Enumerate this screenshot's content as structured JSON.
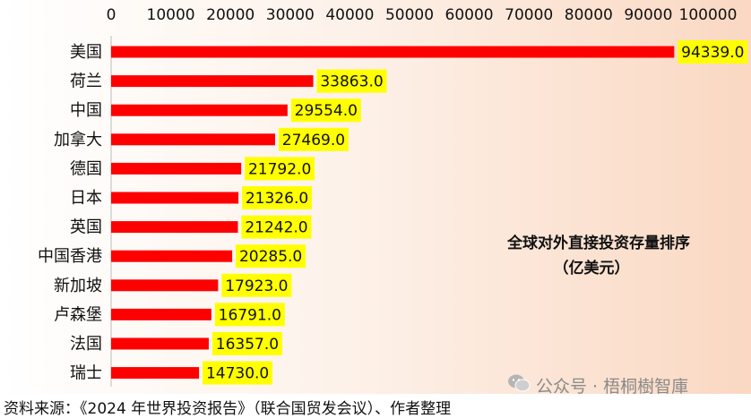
{
  "chart_data": {
    "type": "bar",
    "orientation": "horizontal",
    "title": "全球对外直接投资存量排序",
    "subtitle": "（亿美元）",
    "categories": [
      "美国",
      "荷兰",
      "中国",
      "加拿大",
      "德国",
      "日本",
      "英国",
      "中国香港",
      "新加坡",
      "卢森堡",
      "法国",
      "瑞士"
    ],
    "values": [
      94339.0,
      33863.0,
      29554.0,
      27469.0,
      21792.0,
      21326.0,
      21242.0,
      20285.0,
      17923.0,
      16791.0,
      16357.0,
      14730.0
    ],
    "data_labels": [
      "94339.0",
      "33863.0",
      "29554.0",
      "27469.0",
      "21792.0",
      "21326.0",
      "21242.0",
      "20285.0",
      "17923.0",
      "16791.0",
      "16357.0",
      "14730.0"
    ],
    "x_ticks": [
      "0",
      "10000",
      "20000",
      "30000",
      "40000",
      "50000",
      "60000",
      "70000",
      "80000",
      "90000",
      "100000"
    ],
    "xlim": [
      0,
      100000
    ],
    "axis_position": "top",
    "grid": false,
    "bar_color": "#ff0000",
    "label_background": "#ffff00"
  },
  "source": "资料来源：《2024 年世界投资报告》（联合国贸发会议）、作者整理",
  "watermark": {
    "text": "公众号 · 梧桐樹智庫",
    "icon": "wechat-icon"
  }
}
